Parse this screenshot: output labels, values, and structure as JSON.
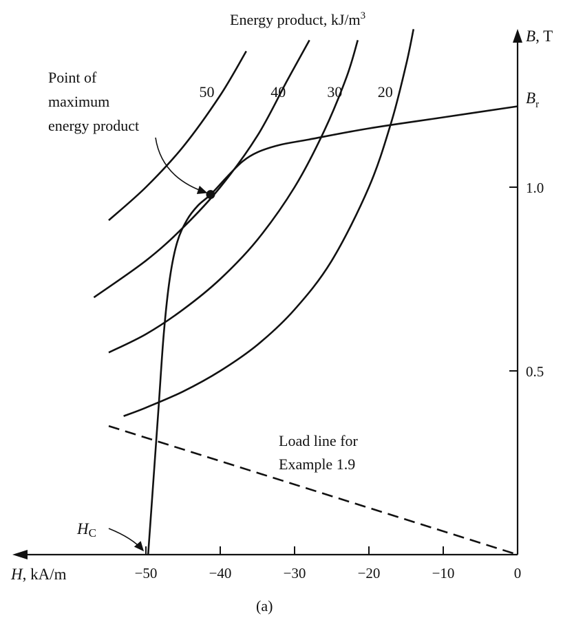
{
  "chart_data": {
    "type": "line",
    "title": "",
    "xlabel": {
      "symbol": "H",
      "unit": ", kA/m"
    },
    "ylabel": {
      "symbol": "B",
      "unit": ", T"
    },
    "xlim": [
      -56,
      0
    ],
    "ylim": [
      0,
      1.44
    ],
    "x_ticks": [
      -50,
      -40,
      -30,
      -20,
      -10,
      0
    ],
    "x_tick_labels": [
      "−50",
      "−40",
      "−30",
      "−20",
      "−10",
      "0"
    ],
    "y_ticks": [
      0.5,
      1.0
    ],
    "y_tick_labels": [
      "0.5",
      "1.0"
    ],
    "grid": false,
    "series": [
      {
        "role": "demagnetization-curve",
        "points": [
          [
            -49.7,
            0
          ],
          [
            -49,
            0.2
          ],
          [
            -48.3,
            0.4
          ],
          [
            -47.6,
            0.6
          ],
          [
            -46.8,
            0.75
          ],
          [
            -45.8,
            0.85
          ],
          [
            -44.5,
            0.91
          ],
          [
            -43,
            0.95
          ],
          [
            -41.3,
            0.98
          ],
          [
            -39,
            1.03
          ],
          [
            -37,
            1.07
          ],
          [
            -35,
            1.095
          ],
          [
            -32,
            1.115
          ],
          [
            -28,
            1.13
          ],
          [
            -20,
            1.16
          ],
          [
            -10,
            1.19
          ],
          [
            0,
            1.22
          ]
        ]
      },
      {
        "role": "load-line",
        "style": "dashed",
        "points": [
          [
            -55,
            0.35
          ],
          [
            0,
            0
          ]
        ]
      },
      {
        "role": "energy-contour",
        "label": "50",
        "points": [
          [
            -55,
            0.91
          ],
          [
            -50,
            1.0
          ],
          [
            -45,
            1.11
          ],
          [
            -40,
            1.25
          ],
          [
            -36.5,
            1.37
          ]
        ]
      },
      {
        "role": "energy-contour",
        "label": "40",
        "points": [
          [
            -57,
            0.7
          ],
          [
            -50,
            0.8
          ],
          [
            -45,
            0.89
          ],
          [
            -40,
            1.0
          ],
          [
            -35,
            1.14
          ],
          [
            -31,
            1.29
          ],
          [
            -28,
            1.4
          ]
        ]
      },
      {
        "role": "energy-contour",
        "label": "30",
        "points": [
          [
            -55,
            0.55
          ],
          [
            -50,
            0.6
          ],
          [
            -45,
            0.667
          ],
          [
            -40,
            0.75
          ],
          [
            -35,
            0.857
          ],
          [
            -30,
            1.0
          ],
          [
            -26,
            1.154
          ],
          [
            -23,
            1.3
          ],
          [
            -21.5,
            1.4
          ]
        ]
      },
      {
        "role": "energy-contour",
        "label": "20",
        "points": [
          [
            -53,
            0.377
          ],
          [
            -50,
            0.4
          ],
          [
            -45,
            0.444
          ],
          [
            -40,
            0.5
          ],
          [
            -35,
            0.571
          ],
          [
            -30,
            0.667
          ],
          [
            -25,
            0.8
          ],
          [
            -20,
            1.0
          ],
          [
            -17,
            1.176
          ],
          [
            -15,
            1.333
          ],
          [
            -14,
            1.43
          ]
        ]
      }
    ],
    "annotations": {
      "top_label": "Energy product, kJ/m",
      "top_label_superscript": "3",
      "max_point_label_lines": [
        "Point of",
        "maximum",
        "energy product"
      ],
      "max_point": [
        -41.3,
        0.98
      ],
      "br_symbol": "B",
      "br_subscript": "r",
      "hc_symbol": "H",
      "hc_subscript": "C",
      "load_line_label_lines": [
        "Load line for",
        "Example 1.9"
      ],
      "caption": "(a)"
    }
  }
}
